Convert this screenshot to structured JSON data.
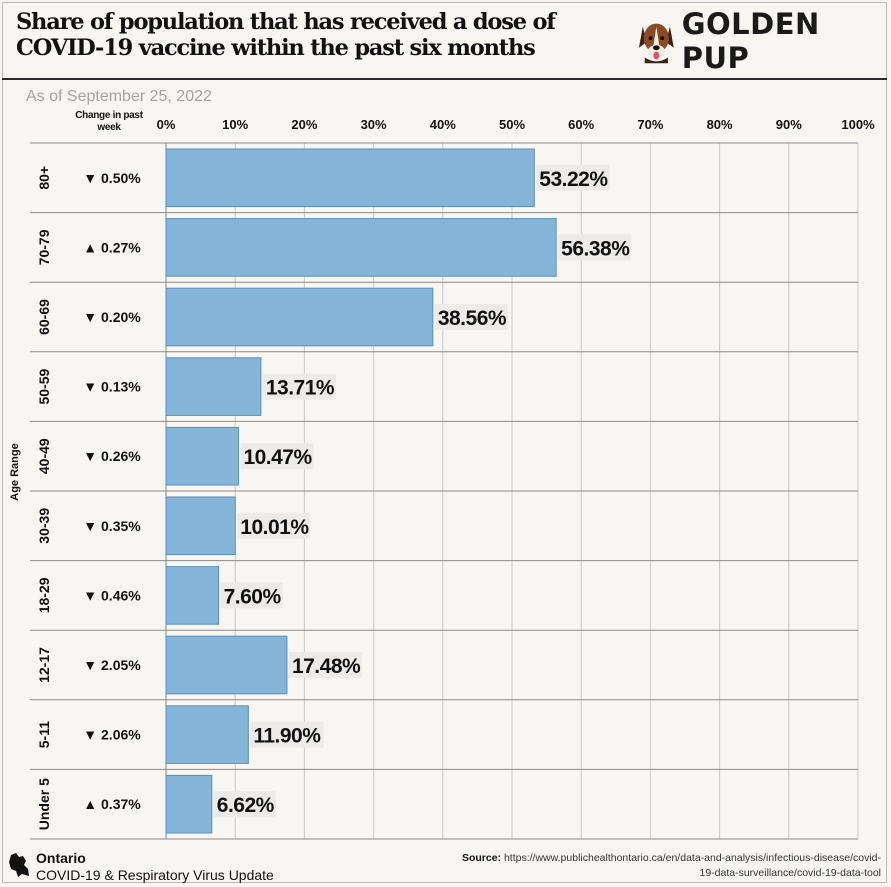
{
  "header": {
    "title": "Share of population that has received a dose of COVID-19 vaccine within the past six months",
    "logo_text": "GOLDEN PUP",
    "logo_icon": "dog-icon"
  },
  "as_of": "As of September 25, 2022",
  "change_header": "Change in past week",
  "colors": {
    "bar": "#85b6da",
    "bar_stroke": "#5a8fb8",
    "grid": "#c9c9c9",
    "row_line": "#8a8a8a"
  },
  "chart_data": {
    "type": "bar",
    "orientation": "horizontal",
    "title": "Share of population that has received a dose of COVID-19 vaccine within the past six months",
    "ylabel": "Age Range",
    "xlim": [
      0,
      100
    ],
    "x_ticks": [
      "0%",
      "10%",
      "20%",
      "30%",
      "40%",
      "50%",
      "60%",
      "70%",
      "80%",
      "90%",
      "100%"
    ],
    "grid": true,
    "categories": [
      "80+",
      "70-79",
      "60-69",
      "50-59",
      "40-49",
      "30-39",
      "18-29",
      "12-17",
      "5-11",
      "Under 5"
    ],
    "values": [
      53.22,
      56.38,
      38.56,
      13.71,
      10.47,
      10.01,
      7.6,
      17.48,
      11.9,
      6.62
    ],
    "value_labels": [
      "53.22%",
      "56.38%",
      "38.56%",
      "13.71%",
      "10.47%",
      "10.01%",
      "7.60%",
      "17.48%",
      "11.90%",
      "6.62%"
    ],
    "change_labels": [
      "▼ 0.50%",
      "▲ 0.27%",
      "▼ 0.20%",
      "▼ 0.13%",
      "▼ 0.26%",
      "▼ 0.35%",
      "▼ 0.46%",
      "▼ 2.05%",
      "▼ 2.06%",
      "▲ 0.37%"
    ]
  },
  "footer": {
    "region": "Ontario",
    "subtitle": "COVID-19 & Respiratory Virus Update",
    "region_icon": "ontario-map-icon",
    "source_label": "Source:",
    "source_url": "https://www.publichealthontario.ca/en/data-and-analysis/infectious-disease/covid-19-data-surveillance/covid-19-data-tool"
  }
}
